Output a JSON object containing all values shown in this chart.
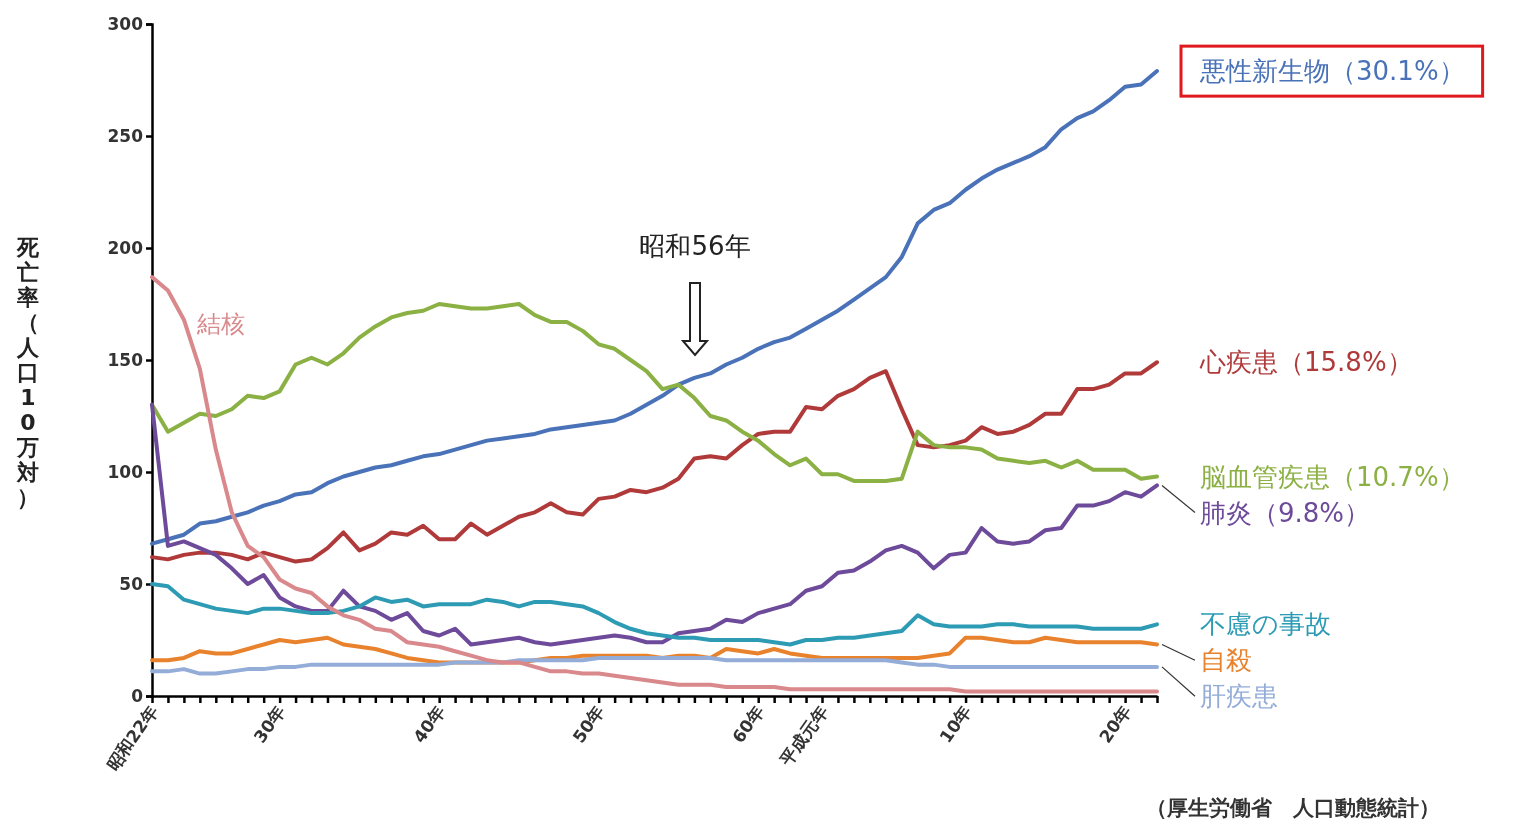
{
  "chart_data": {
    "type": "line",
    "ylabel": "死亡率（人口10万対）",
    "ylim": [
      0,
      300
    ],
    "yticks": [
      0,
      50,
      100,
      150,
      200,
      250,
      300
    ],
    "grid": false,
    "legend": false,
    "marker": "none",
    "line_style": "solid",
    "categories": [
      "昭和22年",
      null,
      null,
      null,
      null,
      null,
      null,
      null,
      "30年",
      null,
      null,
      null,
      null,
      null,
      null,
      null,
      null,
      null,
      "40年",
      null,
      null,
      null,
      null,
      null,
      null,
      null,
      null,
      null,
      "50年",
      null,
      null,
      null,
      null,
      null,
      null,
      null,
      null,
      null,
      "60年",
      null,
      null,
      null,
      "平成元年",
      null,
      null,
      null,
      null,
      null,
      null,
      null,
      null,
      "10年",
      null,
      null,
      null,
      null,
      null,
      null,
      null,
      null,
      null,
      "20年",
      null,
      null
    ],
    "annotations": [
      "昭和56年",
      "（厚生労働省　人口動態統計）"
    ],
    "series": [
      {
        "name": "悪性新生物（30.1%）",
        "color": "#4a72b8",
        "values": [
          68,
          70,
          72,
          77,
          78,
          80,
          82,
          85,
          87,
          90,
          91,
          95,
          98,
          100,
          102,
          103,
          105,
          107,
          108,
          110,
          112,
          114,
          115,
          116,
          117,
          119,
          120,
          121,
          122,
          123,
          126,
          130,
          134,
          139,
          142,
          144,
          148,
          151,
          155,
          158,
          160,
          164,
          168,
          172,
          177,
          182,
          187,
          196,
          211,
          217,
          220,
          226,
          231,
          235,
          238,
          241,
          245,
          253,
          258,
          261,
          266,
          272,
          273,
          279
        ]
      },
      {
        "name": "心疾患（15.8%）",
        "color": "#b03a3a",
        "values": [
          62,
          61,
          63,
          64,
          64,
          63,
          61,
          64,
          62,
          60,
          61,
          66,
          73,
          65,
          68,
          73,
          72,
          76,
          70,
          70,
          77,
          72,
          76,
          80,
          82,
          86,
          82,
          81,
          88,
          89,
          92,
          91,
          93,
          97,
          106,
          107,
          106,
          112,
          117,
          118,
          118,
          129,
          128,
          134,
          137,
          142,
          145,
          128,
          112,
          111,
          112,
          114,
          120,
          117,
          118,
          121,
          126,
          126,
          137,
          137,
          139,
          144,
          144,
          149
        ]
      },
      {
        "name": "脳血管疾患（10.7%）",
        "color": "#8bb043",
        "values": [
          130,
          118,
          122,
          126,
          125,
          128,
          134,
          133,
          136,
          148,
          151,
          148,
          153,
          160,
          165,
          169,
          171,
          172,
          175,
          174,
          173,
          173,
          174,
          175,
          170,
          167,
          167,
          163,
          157,
          155,
          150,
          145,
          137,
          139,
          133,
          125,
          123,
          118,
          114,
          108,
          103,
          106,
          99,
          99,
          96,
          96,
          96,
          97,
          118,
          112,
          111,
          111,
          110,
          106,
          105,
          104,
          105,
          102,
          105,
          101,
          101,
          101,
          97,
          98
        ]
      },
      {
        "name": "肺炎（9.8%）",
        "color": "#6d4a9a",
        "values": [
          130,
          67,
          69,
          66,
          63,
          57,
          50,
          54,
          44,
          40,
          38,
          38,
          47,
          40,
          38,
          34,
          37,
          29,
          27,
          30,
          23,
          24,
          25,
          26,
          24,
          23,
          24,
          25,
          26,
          27,
          26,
          24,
          24,
          28,
          29,
          30,
          34,
          33,
          37,
          39,
          41,
          47,
          49,
          55,
          56,
          60,
          65,
          67,
          64,
          57,
          63,
          64,
          75,
          69,
          68,
          69,
          74,
          75,
          85,
          85,
          87,
          91,
          89,
          94
        ]
      },
      {
        "name": "不慮の事故",
        "color": "#2e9bb5",
        "values": [
          50,
          49,
          43,
          41,
          39,
          38,
          37,
          39,
          39,
          38,
          37,
          37,
          38,
          40,
          44,
          42,
          43,
          40,
          41,
          41,
          41,
          43,
          42,
          40,
          42,
          42,
          41,
          40,
          37,
          33,
          30,
          28,
          27,
          26,
          26,
          25,
          25,
          25,
          25,
          24,
          23,
          25,
          25,
          26,
          26,
          27,
          28,
          29,
          36,
          32,
          31,
          31,
          31,
          32,
          32,
          31,
          31,
          31,
          31,
          30,
          30,
          30,
          30,
          32
        ]
      },
      {
        "name": "自殺",
        "color": "#e8822c",
        "values": [
          16,
          16,
          17,
          20,
          19,
          19,
          21,
          23,
          25,
          24,
          25,
          26,
          23,
          22,
          21,
          19,
          17,
          16,
          15,
          15,
          15,
          15,
          15,
          15,
          16,
          17,
          17,
          18,
          18,
          18,
          18,
          18,
          17,
          18,
          18,
          17,
          21,
          20,
          19,
          21,
          19,
          18,
          17,
          17,
          17,
          17,
          17,
          17,
          17,
          18,
          19,
          26,
          26,
          25,
          24,
          24,
          26,
          25,
          24,
          24,
          24,
          24,
          24,
          23
        ]
      },
      {
        "name": "肝疾患",
        "color": "#93acd8",
        "values": [
          11,
          11,
          12,
          10,
          10,
          11,
          12,
          12,
          13,
          13,
          14,
          14,
          14,
          14,
          14,
          14,
          14,
          14,
          14,
          15,
          15,
          15,
          15,
          16,
          16,
          16,
          16,
          16,
          17,
          17,
          17,
          17,
          17,
          17,
          17,
          17,
          16,
          16,
          16,
          16,
          16,
          16,
          16,
          16,
          16,
          16,
          16,
          15,
          14,
          14,
          13,
          13,
          13,
          13,
          13,
          13,
          13,
          13,
          13,
          13,
          13,
          13,
          13,
          13
        ]
      },
      {
        "name": "結核",
        "color": "#d9888c",
        "values": [
          187,
          181,
          168,
          146,
          110,
          82,
          67,
          62,
          52,
          48,
          46,
          40,
          36,
          34,
          30,
          29,
          24,
          23,
          22,
          20,
          18,
          16,
          15,
          15,
          13,
          11,
          11,
          10,
          10,
          9,
          8,
          7,
          6,
          5,
          5,
          5,
          4,
          4,
          4,
          4,
          3,
          3,
          3,
          3,
          3,
          3,
          3,
          3,
          3,
          3,
          3,
          2,
          2,
          2,
          2,
          2,
          2,
          2,
          2,
          2,
          2,
          2,
          2,
          2
        ]
      }
    ]
  }
}
